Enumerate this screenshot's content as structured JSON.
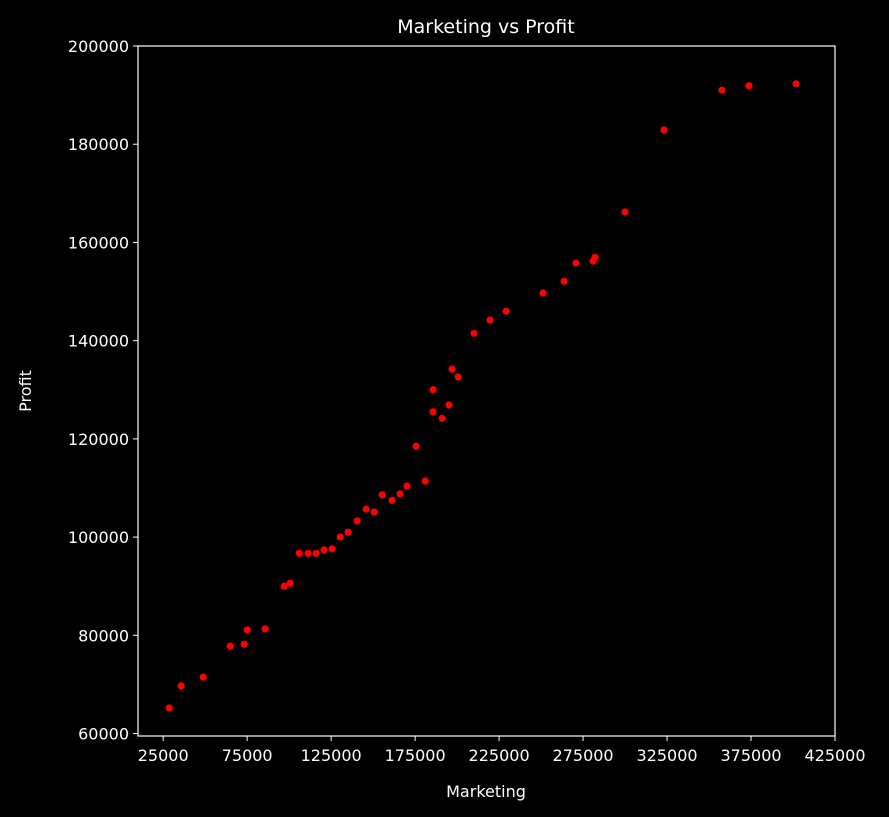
{
  "chart_data": {
    "type": "scatter",
    "title": "Marketing vs Profit",
    "xlabel": "Marketing",
    "ylabel": "Profit",
    "x": [
      28600,
      35700,
      48800,
      64900,
      73200,
      75000,
      85700,
      97000,
      100600,
      106000,
      111300,
      116100,
      120800,
      125600,
      130400,
      135100,
      140500,
      145800,
      150600,
      155400,
      161300,
      166100,
      170200,
      175600,
      181000,
      185700,
      185700,
      191100,
      195200,
      197000,
      200600,
      210100,
      219600,
      229200,
      251200,
      263700,
      270800,
      281000,
      282100,
      300000,
      323200,
      357700,
      373800,
      401800
    ],
    "values": [
      65200,
      69700,
      71500,
      77800,
      78200,
      81100,
      81300,
      90000,
      90600,
      96700,
      96700,
      96700,
      97400,
      97600,
      100000,
      101000,
      103300,
      105700,
      105100,
      108600,
      107500,
      108800,
      110400,
      118500,
      111400,
      130000,
      125500,
      124200,
      126900,
      134200,
      132600,
      141500,
      144200,
      146000,
      149700,
      152100,
      155800,
      156200,
      157000,
      166200,
      182900,
      191000,
      191900,
      192300
    ],
    "color": "#ff0000",
    "xlim": [
      10000,
      425000
    ],
    "xticks": [
      25000,
      75000,
      125000,
      175000,
      225000,
      275000,
      325000,
      375000,
      425000
    ],
    "ylim": [
      59500,
      200000
    ],
    "yticks": [
      60000,
      80000,
      100000,
      120000,
      140000,
      160000,
      180000,
      200000
    ]
  }
}
